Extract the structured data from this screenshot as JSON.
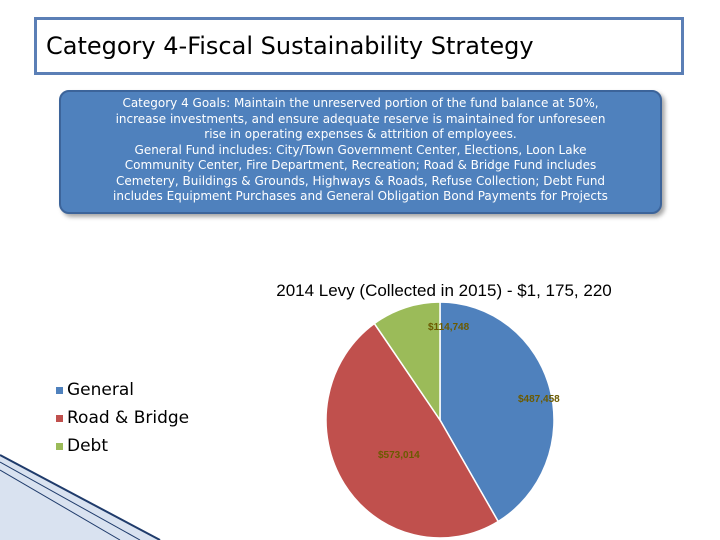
{
  "slide": {
    "title": "Category 4-Fiscal Sustainability Strategy",
    "goals_lines": [
      "Category 4 Goals: Maintain the unreserved portion of the fund balance at 50%,",
      "increase investments, and ensure adequate reserve is maintained for unforeseen",
      "rise in operating expenses & attrition of employees.",
      "General Fund includes: City/Town Government Center, Elections, Loon Lake",
      "Community Center, Fire Department, Recreation; Road & Bridge Fund includes",
      "Cemetery, Buildings & Grounds, Highways & Roads, Refuse Collection; Debt Fund",
      "includes Equipment Purchases and General Obligation Bond Payments for Projects"
    ]
  },
  "chart_data": {
    "type": "pie",
    "title": "2014 Levy (Collected in 2015) - $1, 175, 220",
    "categories": [
      "General",
      "Road & Bridge",
      "Debt"
    ],
    "values": [
      487458,
      573014,
      114748
    ],
    "value_labels": [
      "$487,458",
      "$573,014",
      "$114,748"
    ],
    "colors": [
      "#4f81bd",
      "#c0504d",
      "#9bbb59"
    ],
    "legend_position": "left"
  }
}
